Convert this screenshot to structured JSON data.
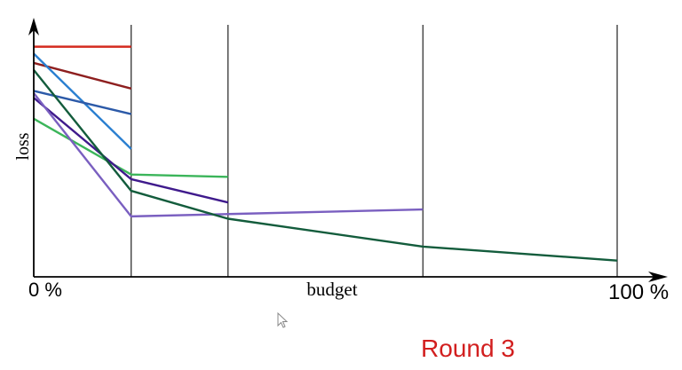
{
  "chart_data": {
    "type": "line",
    "title": "",
    "ylabel": "loss",
    "xlabel": "",
    "x_tick_labels": {
      "start": "0 %",
      "mid": "budget",
      "end": "100 %"
    },
    "x": [
      0,
      16.7,
      33.3,
      66.7,
      100
    ],
    "xlim": [
      0,
      100
    ],
    "ylim": [
      0,
      1
    ],
    "grid": false,
    "legend": "none",
    "series": [
      {
        "color": "#d42a1e",
        "points": [
          [
            0,
            0.99
          ],
          [
            16.7,
            0.99
          ]
        ]
      },
      {
        "color": "#8e1f1f",
        "points": [
          [
            0,
            0.92
          ],
          [
            16.7,
            0.81
          ]
        ]
      },
      {
        "color": "#2a7fd0",
        "points": [
          [
            0,
            0.96
          ],
          [
            16.7,
            0.55
          ]
        ]
      },
      {
        "color": "#2c5aa8",
        "points": [
          [
            0,
            0.8
          ],
          [
            16.7,
            0.7
          ]
        ]
      },
      {
        "color": "#3bb55a",
        "points": [
          [
            0,
            0.68
          ],
          [
            16.7,
            0.44
          ],
          [
            33.3,
            0.43
          ]
        ]
      },
      {
        "color": "#3f1a8c",
        "points": [
          [
            0,
            0.77
          ],
          [
            16.7,
            0.42
          ],
          [
            33.3,
            0.32
          ]
        ]
      },
      {
        "color": "#7a5fc0",
        "points": [
          [
            0,
            0.79
          ],
          [
            16.7,
            0.26
          ],
          [
            33.3,
            0.27
          ],
          [
            66.7,
            0.29
          ]
        ]
      },
      {
        "color": "#135c3c",
        "points": [
          [
            0,
            0.89
          ],
          [
            16.7,
            0.37
          ],
          [
            33.3,
            0.25
          ],
          [
            66.7,
            0.13
          ],
          [
            100,
            0.07
          ]
        ]
      }
    ]
  },
  "caption": {
    "text": "Round 3",
    "color": "#d21f1f"
  }
}
